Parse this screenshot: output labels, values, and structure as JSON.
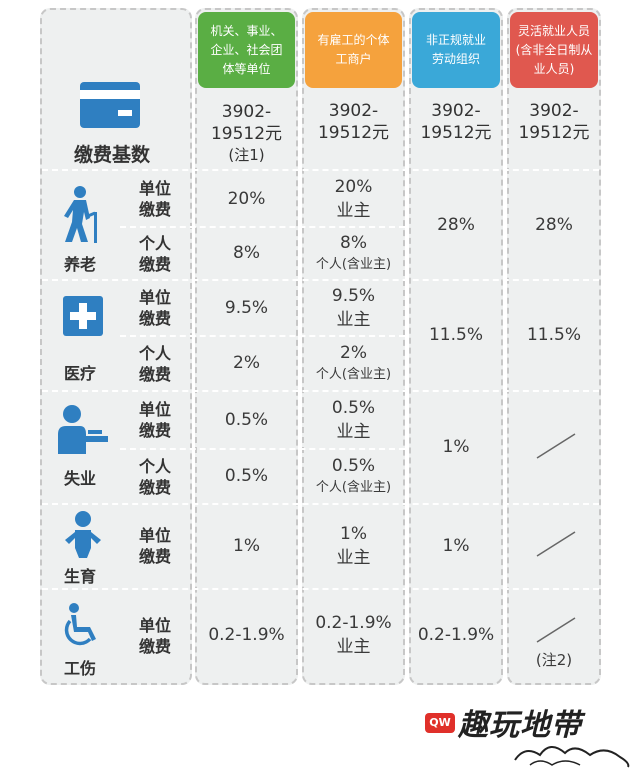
{
  "headers": [
    {
      "text": "机关、事业、企业、社会团体等单位",
      "color": "#5aae44"
    },
    {
      "text": "有雇工的个体工商户",
      "color": "#f5a23d"
    },
    {
      "text": "非正规就业劳动组织",
      "color": "#3aa8d8"
    },
    {
      "text": "灵活就业人员(含非全日制从业人员)",
      "color": "#e0584f"
    }
  ],
  "base": {
    "label": "缴费基数",
    "values": [
      [
        "3902-",
        "19512元",
        "(注1)"
      ],
      [
        "3902-",
        "19512元"
      ],
      [
        "3902-",
        "19512元"
      ],
      [
        "3902-",
        "19512元"
      ]
    ]
  },
  "sub_labels": {
    "unit": [
      "单位",
      "缴费"
    ],
    "personal": [
      "个人",
      "缴费"
    ]
  },
  "rows": {
    "pension": {
      "label": "养老",
      "unit": [
        "20%",
        "20%",
        "业主"
      ],
      "personal": [
        "8%",
        "8%",
        "个人(含业主)"
      ],
      "col3": "28%",
      "col4": "28%"
    },
    "medical": {
      "label": "医疗",
      "unit": [
        "9.5%",
        "9.5%",
        "业主"
      ],
      "personal": [
        "2%",
        "2%",
        "个人(含业主)"
      ],
      "col3": "11.5%",
      "col4": "11.5%"
    },
    "unemployment": {
      "label": "失业",
      "unit": [
        "0.5%",
        "0.5%",
        "业主"
      ],
      "personal": [
        "0.5%",
        "0.5%",
        "个人(含业主)"
      ],
      "col3": "1%"
    },
    "maternity": {
      "label": "生育",
      "unit": [
        "1%",
        "1%",
        "业主"
      ],
      "col3": "1%"
    },
    "injury": {
      "label": "工伤",
      "unit": [
        "0.2-1.9%",
        "0.2-1.9%",
        "业主"
      ],
      "col3": "0.2-1.9%",
      "col4_note": "(注2)"
    }
  },
  "watermark": {
    "badge": "QW",
    "text": "趣玩地带"
  }
}
